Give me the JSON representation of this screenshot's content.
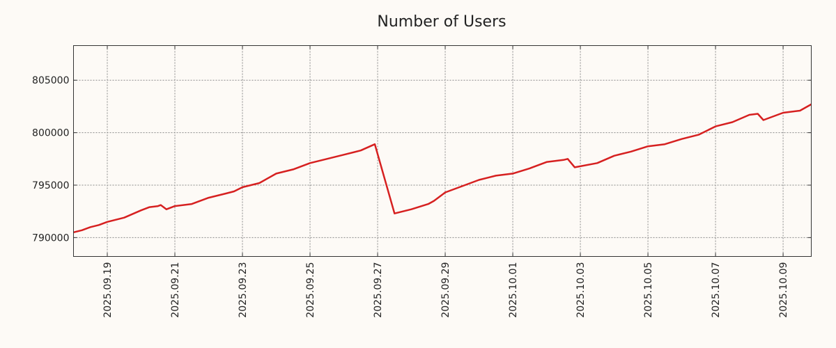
{
  "chart_data": {
    "type": "line",
    "title": "Number of Users",
    "xlabel": "",
    "ylabel": "",
    "x_range": [
      "2025-09-18",
      "2025-10-09 20:00"
    ],
    "ylim": [
      788200,
      808300
    ],
    "grid": true,
    "legend": "none",
    "line_color": "#d62020",
    "y_ticks": [
      790000,
      795000,
      800000,
      805000
    ],
    "y_tick_labels": [
      "790000",
      "795000",
      "800000",
      "805000"
    ],
    "x_ticks": [
      "2025-09-19",
      "2025-09-21",
      "2025-09-23",
      "2025-09-25",
      "2025-09-27",
      "2025-09-29",
      "2025-10-01",
      "2025-10-03",
      "2025-10-05",
      "2025-10-07",
      "2025-10-09"
    ],
    "x_tick_labels": [
      "2025.09.19",
      "2025.09.21",
      "2025.09.23",
      "2025.09.25",
      "2025.09.27",
      "2025.09.29",
      "2025.10.01",
      "2025.10.03",
      "2025.10.05",
      "2025.10.07",
      "2025.10.09"
    ],
    "series": [
      {
        "x": [
          "2025-09-18 00:00",
          "2025-09-18 06:00",
          "2025-09-18 12:00",
          "2025-09-18 18:00",
          "2025-09-19 00:00",
          "2025-09-19 12:00",
          "2025-09-20 00:00",
          "2025-09-20 06:00",
          "2025-09-20 12:00",
          "2025-09-20 14:00",
          "2025-09-20 18:00",
          "2025-09-21 00:00",
          "2025-09-21 12:00",
          "2025-09-22 00:00",
          "2025-09-22 12:00",
          "2025-09-22 18:00",
          "2025-09-23 00:00",
          "2025-09-23 12:00",
          "2025-09-24 00:00",
          "2025-09-24 12:00",
          "2025-09-25 00:00",
          "2025-09-25 12:00",
          "2025-09-26 00:00",
          "2025-09-26 12:00",
          "2025-09-26 17:00",
          "2025-09-26 22:00",
          "2025-09-27 12:00",
          "2025-09-28 00:00",
          "2025-09-28 12:00",
          "2025-09-28 16:00",
          "2025-09-29 00:00",
          "2025-09-29 12:00",
          "2025-09-30 00:00",
          "2025-09-30 06:00",
          "2025-09-30 12:00",
          "2025-10-01 00:00",
          "2025-10-01 12:00",
          "2025-10-02 00:00",
          "2025-10-02 12:00",
          "2025-10-02 15:00",
          "2025-10-02 20:00",
          "2025-10-03 12:00",
          "2025-10-04 00:00",
          "2025-10-04 12:00",
          "2025-10-05 00:00",
          "2025-10-05 12:00",
          "2025-10-06 00:00",
          "2025-10-06 12:00",
          "2025-10-07 00:00",
          "2025-10-07 12:00",
          "2025-10-08 00:00",
          "2025-10-08 06:00",
          "2025-10-08 10:00",
          "2025-10-09 00:00",
          "2025-10-09 12:00",
          "2025-10-09 20:00"
        ],
        "y": [
          790500,
          790700,
          791000,
          791200,
          791500,
          791900,
          792600,
          792900,
          793000,
          793100,
          792700,
          793000,
          793200,
          793800,
          794200,
          794400,
          794800,
          795200,
          796100,
          796500,
          797100,
          797500,
          797900,
          798300,
          798600,
          798900,
          792300,
          792700,
          793200,
          793500,
          794300,
          794900,
          795500,
          795700,
          795900,
          796100,
          796600,
          797200,
          797400,
          797500,
          796700,
          797100,
          797800,
          798200,
          798700,
          798900,
          799400,
          799800,
          800600,
          801000,
          801700,
          801800,
          801200,
          801900,
          802100,
          802700
        ]
      }
    ]
  }
}
